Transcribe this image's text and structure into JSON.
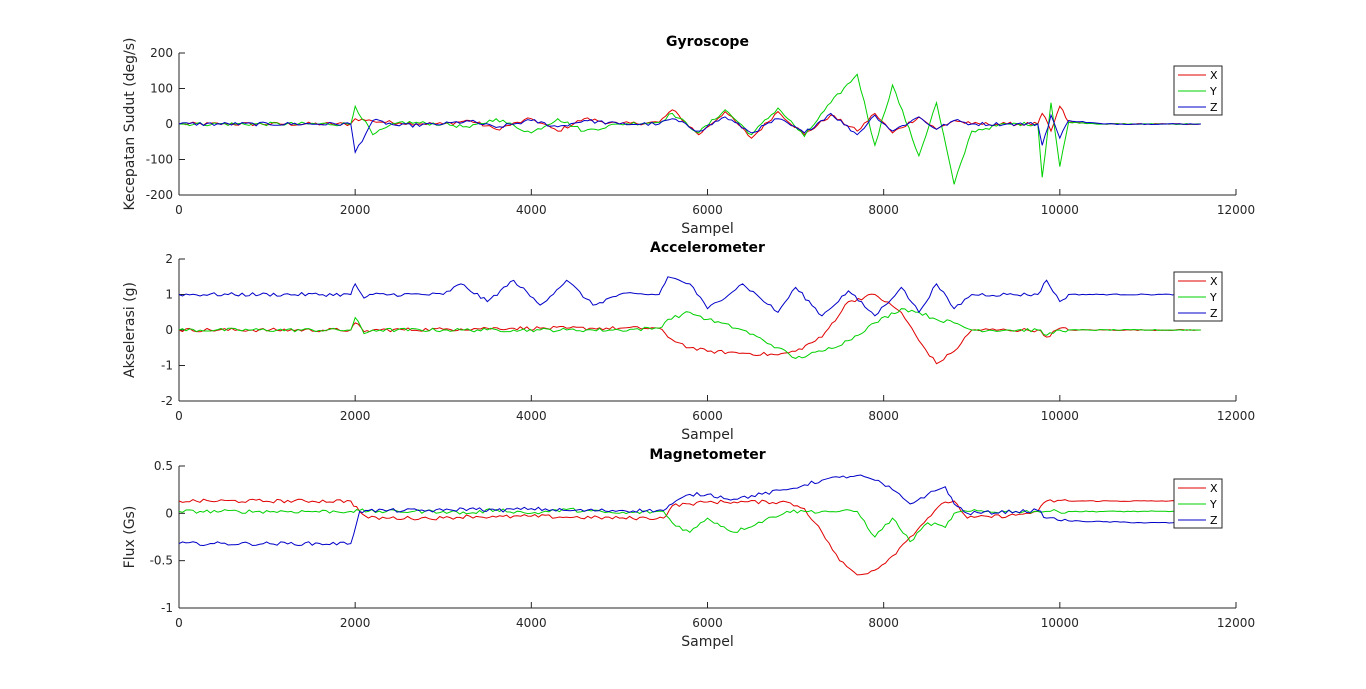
{
  "chart_data": [
    {
      "type": "line",
      "title": "Gyroscope",
      "xlabel": "Sampel",
      "ylabel": "Kecepatan Sudut (deg/s)",
      "xlim": [
        0,
        12000
      ],
      "ylim": [
        -200,
        200
      ],
      "xticks": [
        0,
        2000,
        4000,
        6000,
        8000,
        10000,
        12000
      ],
      "yticks": [
        -200,
        -100,
        0,
        100,
        200
      ],
      "legend_position": "top-right",
      "x": [
        0,
        1950,
        2000,
        2200,
        2500,
        3000,
        3300,
        3600,
        4000,
        4300,
        4600,
        5000,
        5450,
        5600,
        5900,
        6200,
        6500,
        6800,
        7100,
        7400,
        7700,
        7900,
        8100,
        8400,
        8600,
        8800,
        9000,
        9400,
        9750,
        9800,
        9900,
        10000,
        10100,
        10500,
        11000,
        11600
      ],
      "series": [
        {
          "name": "X",
          "color": "#e00000",
          "values": [
            0,
            0,
            15,
            8,
            3,
            0,
            10,
            -15,
            15,
            -20,
            15,
            0,
            5,
            40,
            -30,
            35,
            -40,
            35,
            -30,
            25,
            -20,
            30,
            -25,
            20,
            -15,
            10,
            0,
            0,
            0,
            30,
            -20,
            50,
            5,
            0,
            0,
            0
          ]
        },
        {
          "name": "Y",
          "color": "#00d000",
          "values": [
            0,
            0,
            50,
            -30,
            5,
            0,
            -10,
            15,
            -25,
            15,
            -20,
            0,
            5,
            30,
            -25,
            40,
            -30,
            45,
            -35,
            60,
            140,
            -60,
            110,
            -90,
            60,
            -170,
            -20,
            0,
            0,
            -150,
            60,
            -120,
            5,
            0,
            0,
            0
          ]
        },
        {
          "name": "Z",
          "color": "#0000c8",
          "values": [
            0,
            0,
            -80,
            10,
            -5,
            0,
            8,
            -10,
            10,
            -8,
            10,
            0,
            0,
            15,
            -20,
            20,
            -25,
            15,
            -25,
            30,
            -30,
            25,
            -20,
            20,
            -15,
            10,
            0,
            0,
            0,
            -60,
            25,
            -40,
            10,
            0,
            0,
            0
          ]
        }
      ]
    },
    {
      "type": "line",
      "title": "Accelerometer",
      "xlabel": "Sampel",
      "ylabel": "Akselerasi (g)",
      "xlim": [
        0,
        12000
      ],
      "ylim": [
        -2,
        2
      ],
      "xticks": [
        0,
        2000,
        4000,
        6000,
        8000,
        10000,
        12000
      ],
      "yticks": [
        -2,
        -1,
        0,
        1,
        2
      ],
      "legend_position": "top-right",
      "x": [
        0,
        1950,
        2000,
        2100,
        2200,
        3000,
        3200,
        3500,
        3800,
        4100,
        4400,
        4700,
        5000,
        5450,
        5550,
        5800,
        6000,
        6400,
        6800,
        7000,
        7300,
        7600,
        7900,
        8200,
        8400,
        8600,
        8800,
        9000,
        9400,
        9750,
        9850,
        10000,
        10100,
        11000,
        11600
      ],
      "series": [
        {
          "name": "X",
          "color": "#e00000",
          "values": [
            0,
            0,
            0.2,
            -0.05,
            0,
            0.02,
            0.03,
            0.05,
            0.05,
            0.05,
            0.05,
            0.05,
            0.05,
            0.05,
            -0.2,
            -0.5,
            -0.6,
            -0.65,
            -0.7,
            -0.6,
            -0.2,
            0.8,
            1.0,
            0.5,
            -0.3,
            -0.95,
            -0.6,
            0.0,
            0,
            0,
            -0.2,
            0.05,
            0,
            0,
            0
          ]
        },
        {
          "name": "Y",
          "color": "#00d000",
          "values": [
            0,
            0,
            0.35,
            -0.1,
            0,
            0,
            0,
            0,
            0,
            0,
            0,
            0,
            0,
            0.05,
            0.3,
            0.5,
            0.3,
            0.0,
            -0.5,
            -0.8,
            -0.6,
            -0.3,
            0.2,
            0.6,
            0.5,
            0.3,
            0.2,
            0.0,
            0,
            0,
            -0.15,
            0,
            0,
            0,
            0
          ]
        },
        {
          "name": "Z",
          "color": "#0000c8",
          "values": [
            1,
            1,
            1.3,
            0.9,
            1.0,
            1.0,
            1.3,
            0.8,
            1.4,
            0.7,
            1.4,
            0.7,
            1.0,
            1.0,
            1.5,
            1.3,
            0.6,
            1.3,
            0.5,
            1.2,
            0.4,
            1.1,
            0.4,
            1.2,
            0.5,
            1.3,
            0.6,
            1.0,
            1.0,
            1.0,
            1.4,
            0.8,
            1.0,
            1.0,
            1.0
          ]
        }
      ]
    },
    {
      "type": "line",
      "title": "Magnetometer",
      "xlabel": "Sampel",
      "ylabel": "Flux (Gs)",
      "xlim": [
        0,
        12000
      ],
      "ylim": [
        -1,
        0.5
      ],
      "xticks": [
        0,
        2000,
        4000,
        6000,
        8000,
        10000,
        12000
      ],
      "yticks": [
        -1,
        -0.5,
        0,
        0.5
      ],
      "legend_position": "top-right",
      "x": [
        0,
        1950,
        2050,
        2150,
        3000,
        3300,
        3600,
        4000,
        4400,
        5000,
        5500,
        5600,
        5800,
        6000,
        6300,
        6900,
        7100,
        7300,
        7500,
        7700,
        7900,
        8100,
        8300,
        8500,
        8700,
        8800,
        8950,
        9500,
        9750,
        9850,
        10100,
        11000,
        11600
      ],
      "series": [
        {
          "name": "X",
          "color": "#e00000",
          "values": [
            0.13,
            0.13,
            0.02,
            -0.05,
            -0.05,
            -0.03,
            -0.04,
            -0.03,
            -0.04,
            -0.05,
            -0.05,
            0.08,
            0.1,
            0.12,
            0.12,
            0.12,
            0.05,
            -0.2,
            -0.5,
            -0.65,
            -0.6,
            -0.45,
            -0.25,
            -0.05,
            0.12,
            0.13,
            -0.05,
            -0.02,
            0.02,
            0.13,
            0.13,
            0.13,
            0.13
          ]
        },
        {
          "name": "Y",
          "color": "#00d000",
          "values": [
            0.02,
            0.02,
            0.03,
            0.02,
            0.02,
            0.0,
            0.04,
            0.0,
            0.04,
            0.0,
            0.02,
            -0.1,
            -0.2,
            -0.05,
            -0.2,
            0.02,
            0.02,
            0.02,
            0.02,
            0.02,
            -0.25,
            -0.05,
            -0.3,
            -0.1,
            -0.15,
            0.0,
            0.02,
            0.02,
            0.02,
            0.02,
            0.02,
            0.02,
            0.02
          ]
        },
        {
          "name": "Z",
          "color": "#0000c8",
          "values": [
            -0.32,
            -0.32,
            0.02,
            0.03,
            0.03,
            0.05,
            0.03,
            0.05,
            0.03,
            0.03,
            0.03,
            0.1,
            0.2,
            0.2,
            0.15,
            0.25,
            0.3,
            0.35,
            0.38,
            0.4,
            0.35,
            0.25,
            0.1,
            0.2,
            0.28,
            0.1,
            0.0,
            0.02,
            0.03,
            -0.05,
            -0.08,
            -0.1,
            -0.1
          ]
        }
      ]
    }
  ]
}
